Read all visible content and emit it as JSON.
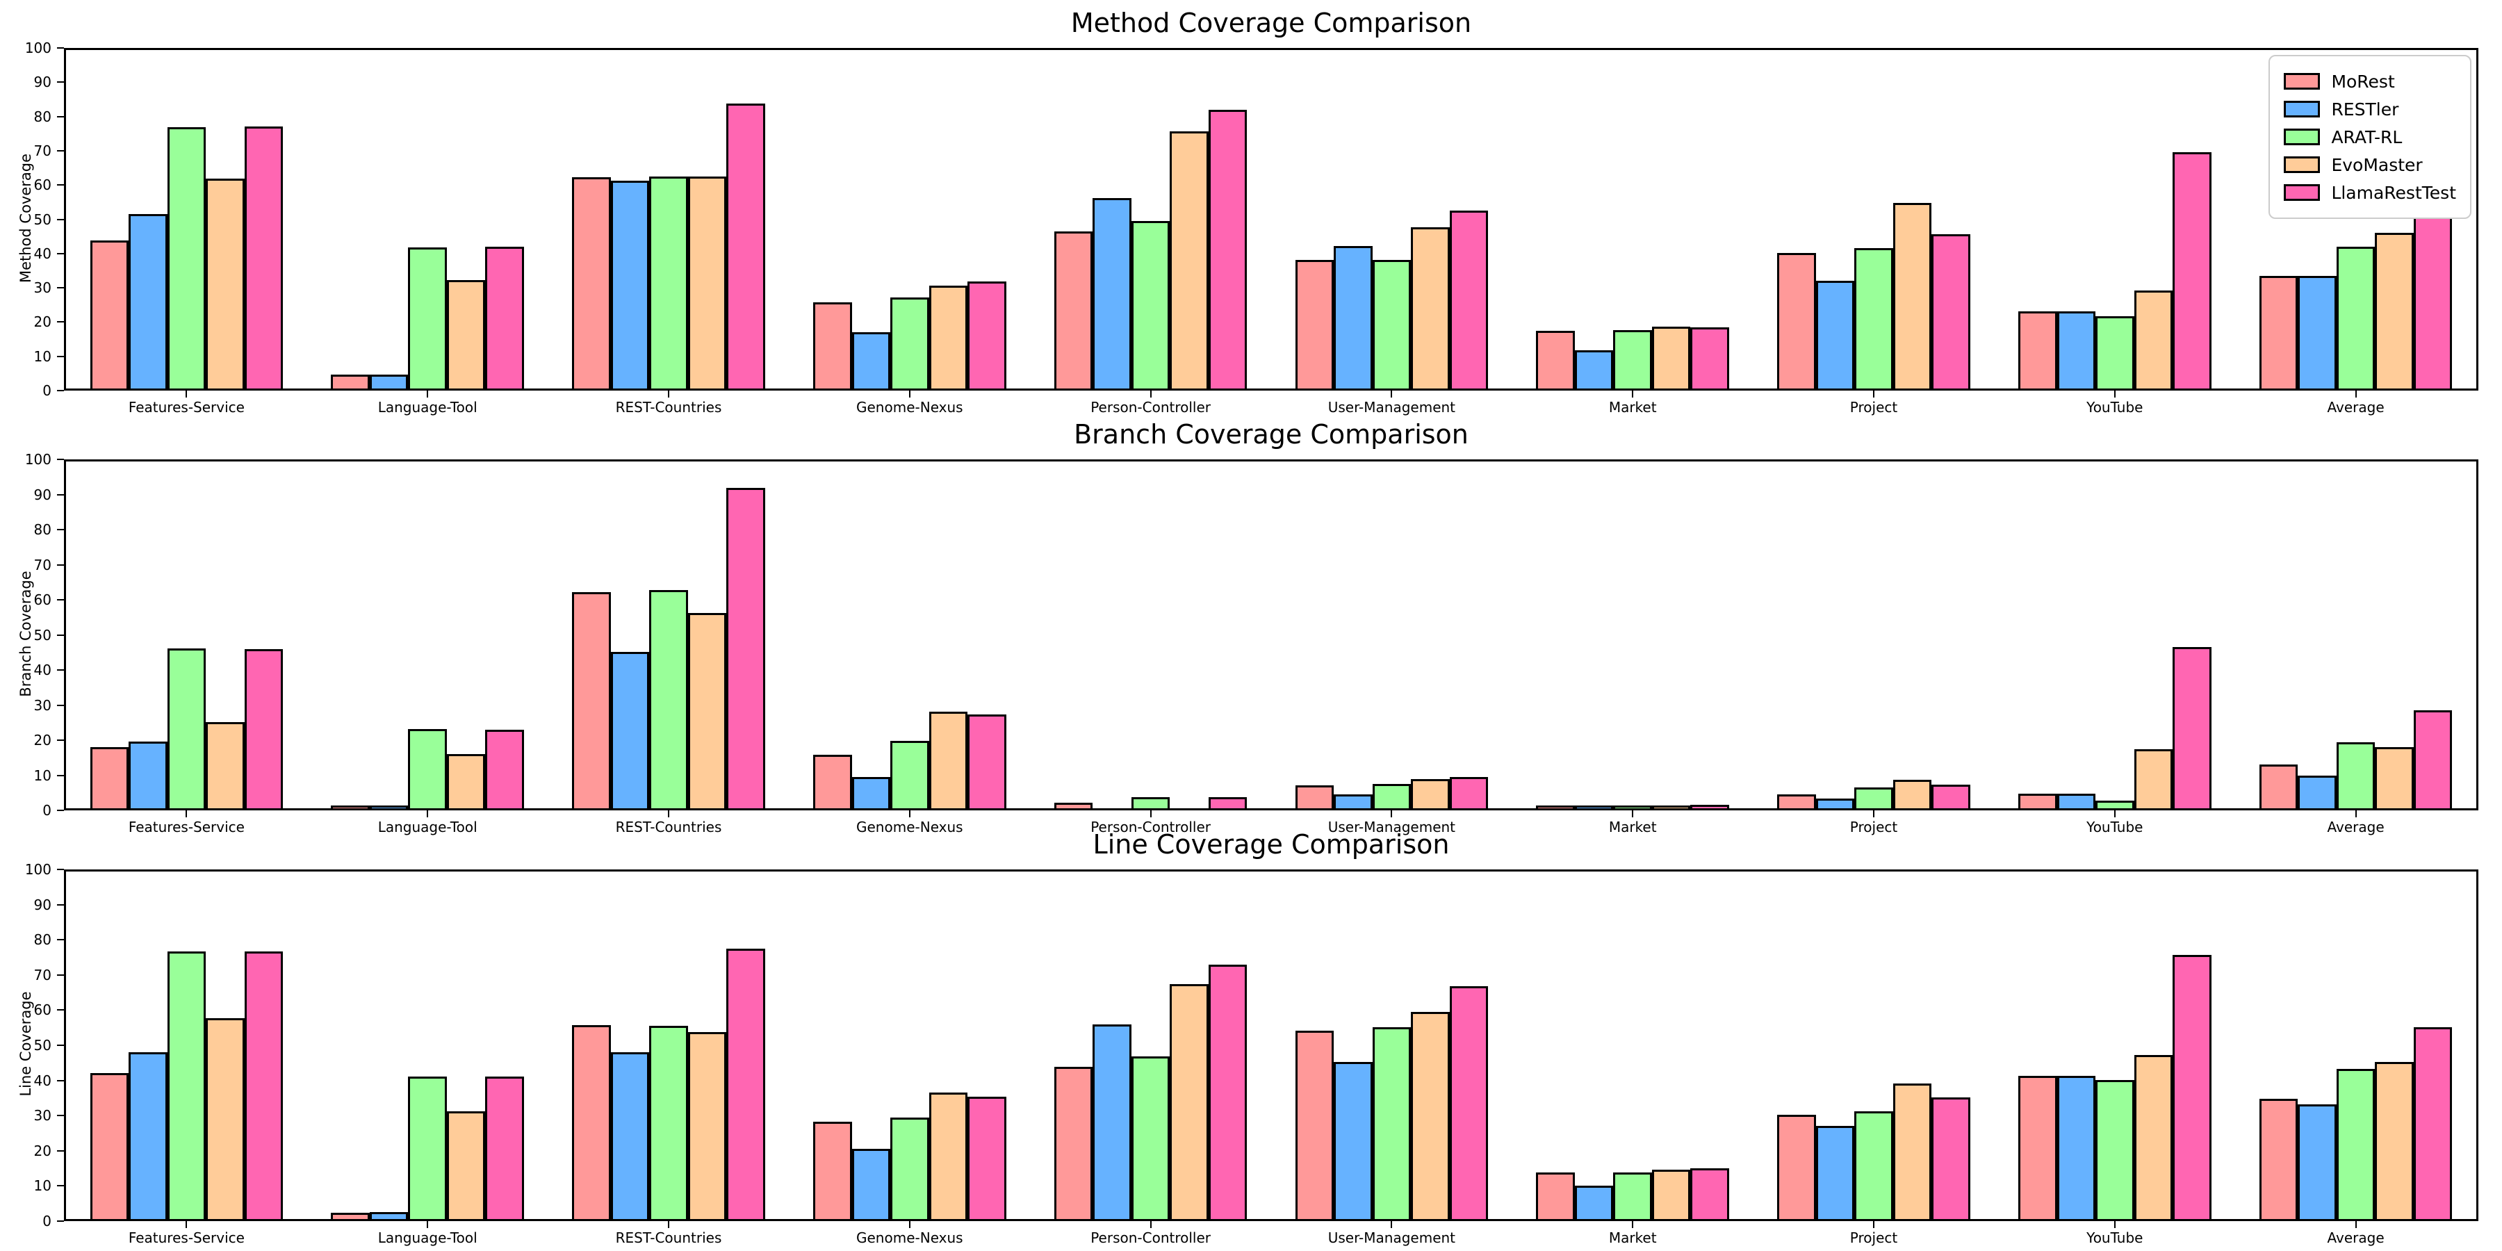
{
  "figure": {
    "background": "#ffffff",
    "frame_color": "#000000"
  },
  "legend": {
    "position": "upper-right",
    "entries": [
      {
        "label": "MoRest",
        "color": "#FF9999"
      },
      {
        "label": "RESTler",
        "color": "#66B2FF"
      },
      {
        "label": "ARAT-RL",
        "color": "#99FF99"
      },
      {
        "label": "EvoMaster",
        "color": "#FFCC99"
      },
      {
        "label": "LlamaRestTest",
        "color": "#FF66B2"
      }
    ]
  },
  "chart_data": [
    {
      "type": "bar",
      "title": "Method Coverage Comparison",
      "xlabel": "",
      "ylabel": "Method Coverage",
      "ylim": [
        0,
        100
      ],
      "ytick_step": 10,
      "grid": false,
      "legend": true,
      "categories": [
        "Features-Service",
        "Language-Tool",
        "REST-Countries",
        "Genome-Nexus",
        "Person-Controller",
        "User-Management",
        "Market",
        "Project",
        "YouTube",
        "Average"
      ],
      "series": [
        {
          "name": "MoRest",
          "color": "#FF9999",
          "values": [
            43.7,
            4.1,
            62.5,
            25.5,
            46.5,
            37.9,
            17.1,
            40.0,
            22.8,
            33.3
          ]
        },
        {
          "name": "RESTler",
          "color": "#66B2FF",
          "values": [
            51.5,
            4.1,
            61.3,
            16.6,
            56.3,
            42.0,
            11.2,
            31.9,
            22.8,
            33.2
          ]
        },
        {
          "name": "ARAT-RL",
          "color": "#99FF99",
          "values": [
            77.2,
            41.7,
            62.7,
            27.0,
            49.4,
            37.9,
            17.3,
            41.4,
            21.4,
            41.8
          ]
        },
        {
          "name": "EvoMaster",
          "color": "#FFCC99",
          "values": [
            62.0,
            32.1,
            62.7,
            30.3,
            76.0,
            47.6,
            18.3,
            54.9,
            29.0,
            45.9
          ]
        },
        {
          "name": "LlamaRestTest",
          "color": "#FF66B2",
          "values": [
            77.5,
            41.9,
            84.2,
            31.7,
            82.3,
            52.5,
            18.1,
            45.6,
            69.8,
            55.9
          ]
        }
      ]
    },
    {
      "type": "bar",
      "title": "Branch Coverage Comparison",
      "xlabel": "",
      "ylabel": "Branch Coverage",
      "ylim": [
        0,
        100
      ],
      "ytick_step": 10,
      "grid": false,
      "legend": false,
      "categories": [
        "Features-Service",
        "Language-Tool",
        "REST-Countries",
        "Genome-Nexus",
        "Person-Controller",
        "User-Management",
        "Market",
        "Project",
        "YouTube",
        "Average"
      ],
      "series": [
        {
          "name": "MoRest",
          "color": "#FF9999",
          "values": [
            17.7,
            0.6,
            62.3,
            15.5,
            1.7,
            6.7,
            0.6,
            4.1,
            4.2,
            12.6
          ]
        },
        {
          "name": "RESTler",
          "color": "#66B2FF",
          "values": [
            19.2,
            0.6,
            45.0,
            9.0,
            0.0,
            4.0,
            0.3,
            2.9,
            4.2,
            9.5
          ]
        },
        {
          "name": "ARAT-RL",
          "color": "#99FF99",
          "values": [
            46.1,
            22.9,
            63.0,
            19.5,
            3.2,
            7.1,
            0.7,
            6.0,
            2.2,
            19.0
          ]
        },
        {
          "name": "EvoMaster",
          "color": "#FFCC99",
          "values": [
            24.9,
            15.7,
            56.3,
            27.8,
            0.0,
            8.5,
            0.7,
            8.3,
            17.1,
            17.7
          ]
        },
        {
          "name": "LlamaRestTest",
          "color": "#FF66B2",
          "values": [
            45.9,
            22.6,
            92.3,
            27.0,
            3.2,
            9.1,
            1.1,
            6.9,
            46.4,
            28.3
          ]
        }
      ]
    },
    {
      "type": "bar",
      "title": "Line Coverage Comparison",
      "xlabel": "",
      "ylabel": "Line Coverage",
      "ylim": [
        0,
        100
      ],
      "ytick_step": 10,
      "grid": false,
      "legend": false,
      "categories": [
        "Features-Service",
        "Language-Tool",
        "REST-Countries",
        "Genome-Nexus",
        "Person-Controller",
        "User-Management",
        "Market",
        "Project",
        "YouTube",
        "Average"
      ],
      "series": [
        {
          "name": "MoRest",
          "color": "#FF9999",
          "values": [
            42.0,
            1.8,
            55.8,
            28.0,
            43.8,
            54.2,
            13.4,
            30.0,
            41.1,
            34.5
          ]
        },
        {
          "name": "RESTler",
          "color": "#66B2FF",
          "values": [
            47.9,
            1.9,
            47.9,
            20.2,
            56.0,
            45.3,
            9.7,
            26.9,
            41.2,
            33.0
          ]
        },
        {
          "name": "ARAT-RL",
          "color": "#99FF99",
          "values": [
            77.0,
            40.9,
            55.6,
            29.2,
            46.8,
            55.2,
            13.4,
            31.0,
            40.0,
            43.2
          ]
        },
        {
          "name": "EvoMaster",
          "color": "#FFCC99",
          "values": [
            57.8,
            31.0,
            53.8,
            36.3,
            67.5,
            59.6,
            14.2,
            38.9,
            47.2,
            45.1
          ]
        },
        {
          "name": "LlamaRestTest",
          "color": "#FF66B2",
          "values": [
            76.9,
            40.9,
            77.7,
            35.2,
            73.2,
            67.0,
            14.5,
            35.0,
            75.9,
            55.1
          ]
        }
      ]
    }
  ]
}
